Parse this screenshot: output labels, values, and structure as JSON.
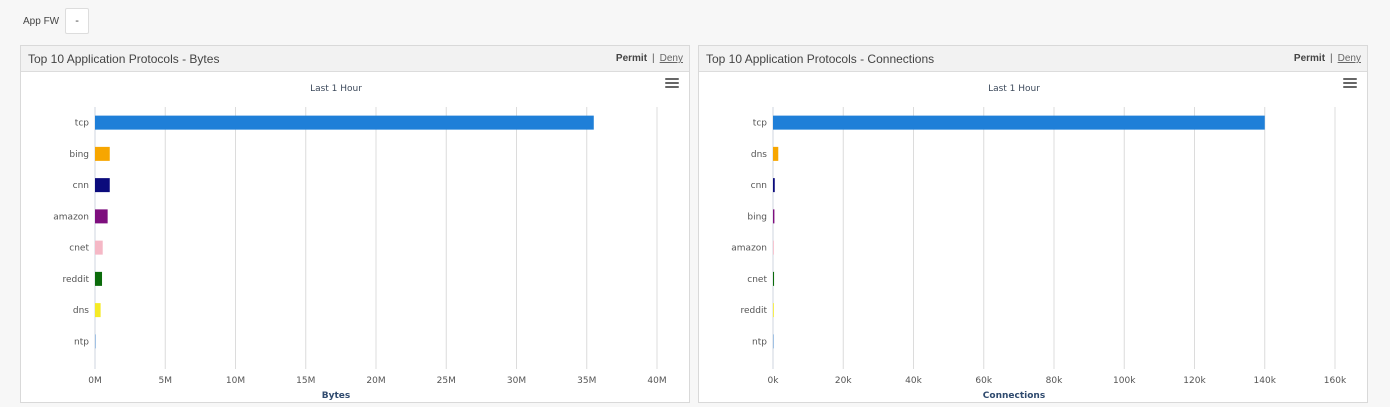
{
  "filter": {
    "label": "App FW",
    "value": "-"
  },
  "panels": [
    {
      "title": "Top 10 Application Protocols - Bytes",
      "permit_label": "Permit",
      "separator": "|",
      "deny_label": "Deny",
      "menu_icon": "hamburger-menu-icon"
    },
    {
      "title": "Top 10 Application Protocols - Connections",
      "permit_label": "Permit",
      "separator": "|",
      "deny_label": "Deny",
      "menu_icon": "hamburger-menu-icon"
    }
  ],
  "chart_data": [
    {
      "type": "bar",
      "orientation": "horizontal",
      "subtitle": "Last 1 Hour",
      "xlabel": "Bytes",
      "categories": [
        "tcp",
        "bing",
        "cnn",
        "amazon",
        "cnet",
        "reddit",
        "dns",
        "ntp"
      ],
      "values": [
        35500000,
        1050000,
        1050000,
        900000,
        550000,
        500000,
        400000,
        50000
      ],
      "colors": [
        "#1f7fd8",
        "#f7a600",
        "#0b0b7c",
        "#7e0f7e",
        "#f5b8c6",
        "#0b6b0b",
        "#f5ea25",
        "#8cb4de"
      ],
      "xlim": [
        0,
        40000000
      ],
      "ticks": [
        0,
        5000000,
        10000000,
        15000000,
        20000000,
        25000000,
        30000000,
        35000000,
        40000000
      ],
      "tick_labels": [
        "0M",
        "5M",
        "10M",
        "15M",
        "20M",
        "25M",
        "30M",
        "35M",
        "40M"
      ],
      "grid": true
    },
    {
      "type": "bar",
      "orientation": "horizontal",
      "subtitle": "Last 1 Hour",
      "xlabel": "Connections",
      "categories": [
        "tcp",
        "dns",
        "cnn",
        "bing",
        "amazon",
        "cnet",
        "reddit",
        "ntp"
      ],
      "values": [
        140000,
        1500,
        500,
        400,
        100,
        300,
        80,
        200
      ],
      "colors": [
        "#1f7fd8",
        "#f7a600",
        "#0b0b7c",
        "#7e0f7e",
        "#f5b8c6",
        "#0b6b0b",
        "#f5ea25",
        "#8cb4de"
      ],
      "xlim": [
        0,
        160000
      ],
      "ticks": [
        0,
        20000,
        40000,
        60000,
        80000,
        100000,
        120000,
        140000,
        160000
      ],
      "tick_labels": [
        "0k",
        "20k",
        "40k",
        "60k",
        "80k",
        "100k",
        "120k",
        "140k",
        "160k"
      ],
      "grid": true
    }
  ]
}
